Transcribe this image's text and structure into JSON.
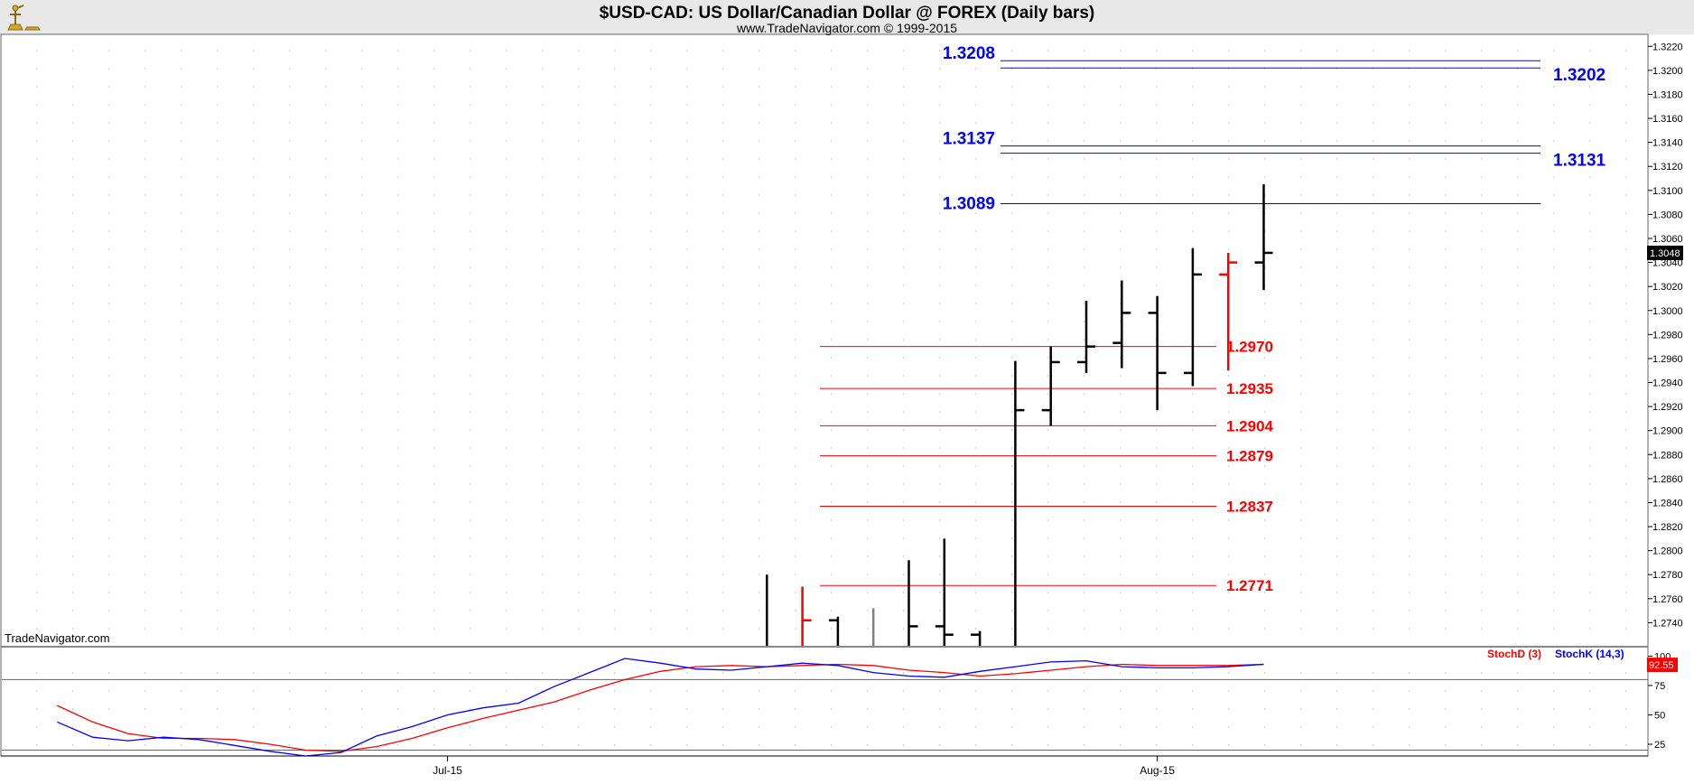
{
  "header": {
    "title": "$USD-CAD:  US Dollar/Canadian Dollar @ FOREX  (Daily bars)",
    "subtitle": "www.TradeNavigator.com © 1999-2015"
  },
  "watermark": "TradeNavigator.com",
  "colors": {
    "background": "#ffffff",
    "header_bg": "#e8e8e8",
    "up_bar": "#000000",
    "down_bar": "#ff0000",
    "neutral_bar": "#808080",
    "resistance": "#0000ff",
    "support": "#ff0000",
    "stoch_d": "#ff0000",
    "stoch_k": "#0000ff",
    "grid_dot": "#b4b4b4"
  },
  "chart_data": [
    {
      "type": "ohlc",
      "title": "$USD-CAD:  US Dollar/Canadian Dollar @ FOREX  (Daily bars)",
      "ylim": [
        1.272,
        1.323
      ],
      "y_ticks": [
        "1.2740",
        "1.2760",
        "1.2780",
        "1.2800",
        "1.2820",
        "1.2840",
        "1.2860",
        "1.2880",
        "1.2900",
        "1.2920",
        "1.2940",
        "1.2960",
        "1.2980",
        "1.3000",
        "1.3020",
        "1.3040",
        "1.3060",
        "1.3080",
        "1.3100",
        "1.3120",
        "1.3140",
        "1.3160",
        "1.3180",
        "1.3200",
        "1.3220"
      ],
      "x_tick_labels": [
        "Jul-15",
        "Aug-15"
      ],
      "last_price": "1.3048",
      "bars": [
        {
          "open": null,
          "high": 1.278,
          "low": 1.272,
          "close": null,
          "color": "black"
        },
        {
          "open": null,
          "high": 1.277,
          "low": 1.272,
          "close": 1.2742,
          "color": "red"
        },
        {
          "open": 1.2742,
          "high": 1.2745,
          "low": 1.272,
          "close": null,
          "color": "black"
        },
        {
          "open": null,
          "high": 1.2752,
          "low": 1.272,
          "close": null,
          "color": "gray"
        },
        {
          "open": null,
          "high": 1.2792,
          "low": 1.272,
          "close": 1.2737,
          "color": "black"
        },
        {
          "open": 1.2737,
          "high": 1.281,
          "low": 1.272,
          "close": 1.273,
          "color": "black"
        },
        {
          "open": 1.273,
          "high": 1.2733,
          "low": 1.272,
          "close": null,
          "color": "black"
        },
        {
          "open": null,
          "high": 1.2958,
          "low": 1.272,
          "close": 1.2917,
          "color": "black"
        },
        {
          "open": 1.2917,
          "high": 1.297,
          "low": 1.2904,
          "close": 1.2957,
          "color": "black"
        },
        {
          "open": 1.2957,
          "high": 1.3008,
          "low": 1.2948,
          "close": 1.297,
          "color": "black"
        },
        {
          "open": 1.2973,
          "high": 1.3025,
          "low": 1.2952,
          "close": 1.2998,
          "color": "black"
        },
        {
          "open": 1.2998,
          "high": 1.3012,
          "low": 1.2917,
          "close": 1.2948,
          "color": "black"
        },
        {
          "open": 1.2948,
          "high": 1.3052,
          "low": 1.2937,
          "close": 1.303,
          "color": "black"
        },
        {
          "open": 1.303,
          "high": 1.3048,
          "low": 1.295,
          "close": 1.304,
          "color": "red"
        },
        {
          "open": 1.304,
          "high": 1.3105,
          "low": 1.3017,
          "close": 1.3048,
          "color": "black"
        }
      ],
      "resistance_lines": [
        {
          "value": 1.3208,
          "label": "1.3208"
        },
        {
          "value": 1.3202,
          "label": "1.3202"
        },
        {
          "value": 1.3137,
          "label": "1.3137"
        },
        {
          "value": 1.3131,
          "label": "1.3131"
        },
        {
          "value": 1.3089,
          "label": "1.3089"
        }
      ],
      "support_lines": [
        {
          "value": 1.297,
          "label": "1.2970"
        },
        {
          "value": 1.2935,
          "label": "1.2935"
        },
        {
          "value": 1.2904,
          "label": "1.2904"
        },
        {
          "value": 1.2879,
          "label": "1.2879"
        },
        {
          "value": 1.2837,
          "label": "1.2837"
        },
        {
          "value": 1.2771,
          "label": "1.2771"
        }
      ],
      "grid": true
    },
    {
      "type": "line",
      "ylim": [
        15,
        108
      ],
      "y_ticks": [
        "25",
        "50",
        "75",
        "100"
      ],
      "reference_lines": [
        20,
        80
      ],
      "last_value": "92.55",
      "series": [
        {
          "name": "StochD (3)",
          "values": [
            58,
            44,
            34,
            30,
            30,
            29,
            25,
            20,
            19,
            23,
            30,
            39,
            47,
            54,
            61,
            71,
            80,
            87,
            91,
            92,
            91,
            92,
            93,
            92,
            88,
            86,
            83,
            85,
            88,
            91,
            93,
            92,
            92,
            92,
            93
          ]
        },
        {
          "name": "StochK (14,3)",
          "values": [
            44,
            31,
            28,
            31,
            29,
            24,
            19,
            15,
            18,
            32,
            40,
            50,
            56,
            60,
            74,
            86,
            98,
            94,
            89,
            88,
            91,
            94,
            92,
            86,
            83,
            82,
            87,
            91,
            95,
            96,
            91,
            90,
            90,
            91,
            93
          ]
        }
      ]
    }
  ]
}
